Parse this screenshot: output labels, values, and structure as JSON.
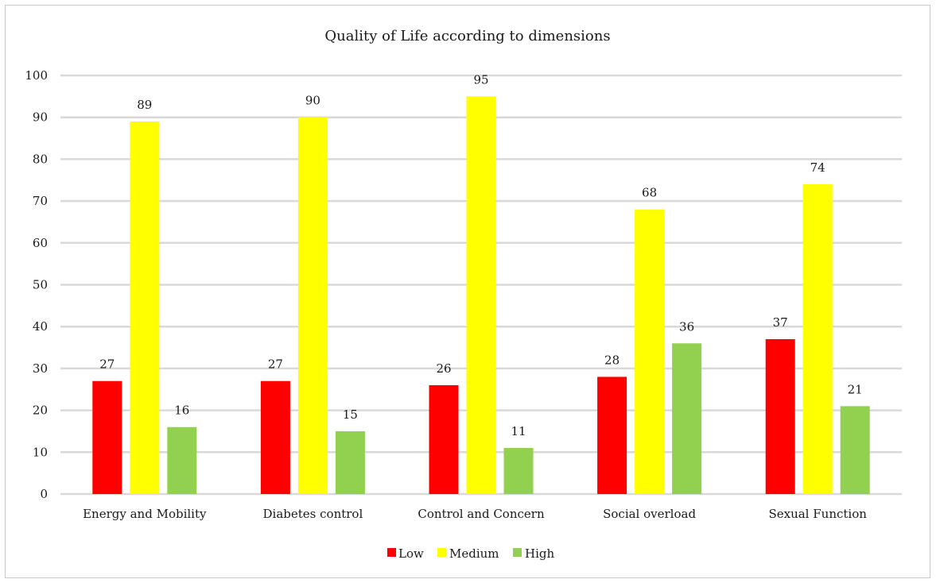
{
  "chart_data": {
    "type": "bar",
    "title": "Quality of Life according to dimensions",
    "xlabel": "",
    "ylabel": "",
    "ylim": [
      0,
      100
    ],
    "yticks": [
      0,
      10,
      20,
      30,
      40,
      50,
      60,
      70,
      80,
      90,
      100
    ],
    "grid": true,
    "legend_position": "bottom",
    "categories": [
      "Energy and Mobility",
      "Diabetes control",
      "Control and Concern",
      "Social overload",
      "Sexual Function"
    ],
    "series": [
      {
        "name": "Low",
        "color": "#ff0000",
        "values": [
          27,
          27,
          26,
          28,
          37
        ]
      },
      {
        "name": "Medium",
        "color": "#ffff00",
        "values": [
          89,
          90,
          95,
          68,
          74
        ]
      },
      {
        "name": "High",
        "color": "#92d050",
        "values": [
          16,
          15,
          11,
          36,
          21
        ]
      }
    ]
  }
}
